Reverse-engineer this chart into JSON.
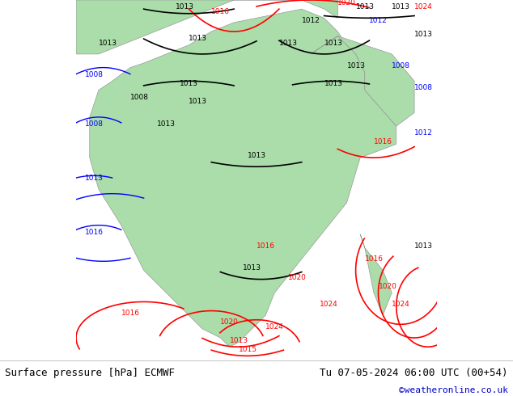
{
  "title_left": "Surface pressure [hPa] ECMWF",
  "title_right": "Tu 07-05-2024 06:00 UTC (00+54)",
  "watermark": "©weatheronline.co.uk",
  "watermark_color": "#0000cc",
  "bg_color_ocean": "#e8e8e8",
  "bg_color_land": "#aaddaa",
  "footer_bg": "#ffffff",
  "footer_text_color": "#000000",
  "fig_width": 6.34,
  "fig_height": 4.9,
  "dpi": 100
}
